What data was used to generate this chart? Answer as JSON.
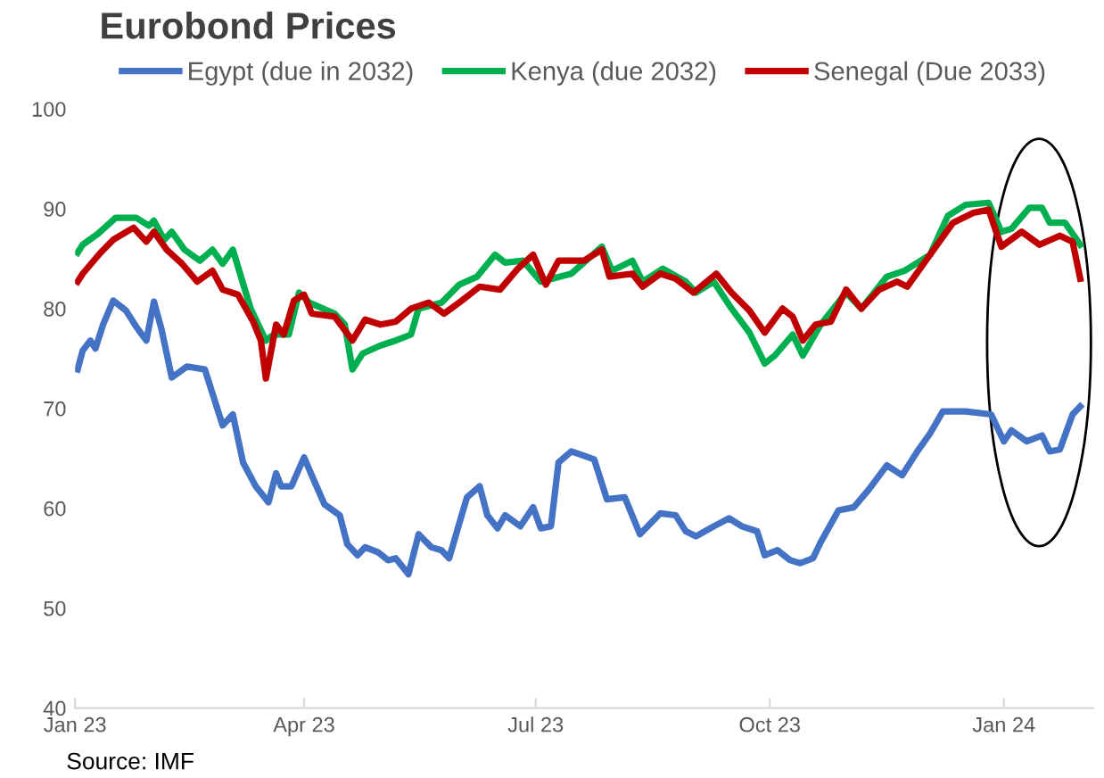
{
  "chart_data": {
    "type": "line",
    "title": "Eurobond Prices",
    "xlim": [
      "2023-01-01",
      "2024-02-05"
    ],
    "xticks": [
      {
        "value": "2023-01-01",
        "label": "Jan 23"
      },
      {
        "value": "2023-04-01",
        "label": "Apr 23"
      },
      {
        "value": "2023-07-01",
        "label": "Jul 23"
      },
      {
        "value": "2023-10-01",
        "label": "Oct 23"
      },
      {
        "value": "2024-01-01",
        "label": "Jan 24"
      }
    ],
    "ylim": [
      40,
      100
    ],
    "yticks": [
      40,
      50,
      60,
      70,
      80,
      90,
      100
    ],
    "grid": false,
    "legend": "top",
    "line_style": "solid",
    "marker": "none",
    "annotations": [
      "Source: IMF"
    ],
    "series": [
      {
        "name": "Egypt (due in 2032)",
        "color": "#4472c4",
        "x": [
          "2023-01-02",
          "2023-01-04",
          "2023-01-07",
          "2023-01-09",
          "2023-01-12",
          "2023-01-16",
          "2023-01-21",
          "2023-01-25",
          "2023-01-29",
          "2023-02-01",
          "2023-02-04",
          "2023-02-08",
          "2023-02-14",
          "2023-02-21",
          "2023-02-28",
          "2023-03-04",
          "2023-03-08",
          "2023-03-13",
          "2023-03-18",
          "2023-03-21",
          "2023-03-23",
          "2023-03-27",
          "2023-04-01",
          "2023-04-04",
          "2023-04-09",
          "2023-04-15",
          "2023-04-18",
          "2023-04-22",
          "2023-04-25",
          "2023-04-30",
          "2023-05-04",
          "2023-05-07",
          "2023-05-12",
          "2023-05-16",
          "2023-05-21",
          "2023-05-25",
          "2023-05-28",
          "2023-06-01",
          "2023-06-04",
          "2023-06-09",
          "2023-06-12",
          "2023-06-16",
          "2023-06-19",
          "2023-06-25",
          "2023-06-30",
          "2023-07-03",
          "2023-07-07",
          "2023-07-10",
          "2023-07-15",
          "2023-07-24",
          "2023-07-29",
          "2023-08-05",
          "2023-08-11",
          "2023-08-19",
          "2023-08-25",
          "2023-08-29",
          "2023-09-02",
          "2023-09-09",
          "2023-09-15",
          "2023-09-20",
          "2023-09-26",
          "2023-09-29",
          "2023-10-04",
          "2023-10-09",
          "2023-10-13",
          "2023-10-18",
          "2023-10-21",
          "2023-10-28",
          "2023-11-03",
          "2023-11-09",
          "2023-11-16",
          "2023-11-22",
          "2023-11-28",
          "2023-12-03",
          "2023-12-08",
          "2023-12-17",
          "2023-12-27",
          "2024-01-01",
          "2024-01-04",
          "2024-01-10",
          "2024-01-16",
          "2024-01-19",
          "2024-01-23",
          "2024-01-28",
          "2024-01-31"
        ],
        "values": [
          73.9,
          75.8,
          76.8,
          76.0,
          78.4,
          80.8,
          79.8,
          78.2,
          76.8,
          80.7,
          77.9,
          73.1,
          74.2,
          73.9,
          68.3,
          69.4,
          64.6,
          62.2,
          60.6,
          63.5,
          62.2,
          62.2,
          65.1,
          63.3,
          60.4,
          59.3,
          56.4,
          55.3,
          56.1,
          55.6,
          54.8,
          55.0,
          53.4,
          57.4,
          56.1,
          55.8,
          55.0,
          58.5,
          61.1,
          62.2,
          59.3,
          58.0,
          59.3,
          58.2,
          60.1,
          58.0,
          58.2,
          64.6,
          65.7,
          64.9,
          60.9,
          61.1,
          57.4,
          59.5,
          59.3,
          57.7,
          57.2,
          58.2,
          59.0,
          58.2,
          57.7,
          55.3,
          55.8,
          54.8,
          54.5,
          55.0,
          56.6,
          59.8,
          60.1,
          61.9,
          64.3,
          63.3,
          65.7,
          67.5,
          69.7,
          69.7,
          69.4,
          66.7,
          67.8,
          66.7,
          67.3,
          65.7,
          65.9,
          69.4,
          70.2
        ]
      },
      {
        "name": "Kenya (due 2032)",
        "color": "#00b050",
        "x": [
          "2023-01-02",
          "2023-01-04",
          "2023-01-10",
          "2023-01-17",
          "2023-01-25",
          "2023-01-30",
          "2023-02-01",
          "2023-02-05",
          "2023-02-08",
          "2023-02-13",
          "2023-02-19",
          "2023-02-24",
          "2023-02-28",
          "2023-03-04",
          "2023-03-11",
          "2023-03-17",
          "2023-03-20",
          "2023-03-26",
          "2023-03-30",
          "2023-04-03",
          "2023-04-13",
          "2023-04-17",
          "2023-04-20",
          "2023-04-24",
          "2023-05-01",
          "2023-05-07",
          "2023-05-13",
          "2023-05-16",
          "2023-05-25",
          "2023-06-01",
          "2023-06-08",
          "2023-06-15",
          "2023-06-19",
          "2023-06-26",
          "2023-07-03",
          "2023-07-15",
          "2023-07-27",
          "2023-07-31",
          "2023-08-08",
          "2023-08-12",
          "2023-08-20",
          "2023-08-29",
          "2023-09-02",
          "2023-09-09",
          "2023-09-16",
          "2023-09-23",
          "2023-09-29",
          "2023-10-03",
          "2023-10-10",
          "2023-10-14",
          "2023-10-21",
          "2023-10-31",
          "2023-11-06",
          "2023-11-16",
          "2023-11-23",
          "2023-12-03",
          "2023-12-10",
          "2023-12-17",
          "2023-12-26",
          "2023-12-31",
          "2024-01-04",
          "2024-01-11",
          "2024-01-16",
          "2024-01-19",
          "2024-01-25",
          "2024-01-31"
        ],
        "values": [
          85.6,
          86.4,
          87.5,
          89.1,
          89.1,
          88.3,
          88.8,
          86.9,
          87.7,
          85.9,
          84.8,
          85.9,
          84.5,
          85.9,
          80.0,
          76.8,
          77.4,
          77.4,
          81.6,
          80.6,
          79.5,
          78.4,
          73.9,
          75.5,
          76.3,
          76.8,
          77.4,
          80.0,
          80.6,
          82.4,
          83.2,
          85.4,
          84.6,
          84.8,
          82.7,
          83.5,
          86.2,
          83.8,
          84.8,
          82.7,
          84.0,
          82.7,
          81.6,
          82.7,
          80.0,
          77.6,
          74.5,
          75.3,
          77.4,
          75.3,
          78.4,
          81.6,
          80.0,
          83.2,
          83.8,
          85.4,
          89.3,
          90.4,
          90.6,
          87.7,
          88.0,
          90.1,
          90.1,
          88.6,
          88.6,
          86.4
        ]
      },
      {
        "name": "Senegal (Due 2033)",
        "color": "#c00000",
        "x": [
          "2023-01-02",
          "2023-01-04",
          "2023-01-11",
          "2023-01-16",
          "2023-01-24",
          "2023-01-29",
          "2023-02-01",
          "2023-02-06",
          "2023-02-12",
          "2023-02-18",
          "2023-02-24",
          "2023-02-28",
          "2023-03-06",
          "2023-03-12",
          "2023-03-15",
          "2023-03-17",
          "2023-03-21",
          "2023-03-24",
          "2023-03-28",
          "2023-04-01",
          "2023-04-04",
          "2023-04-13",
          "2023-04-20",
          "2023-04-25",
          "2023-05-01",
          "2023-05-07",
          "2023-05-13",
          "2023-05-20",
          "2023-05-26",
          "2023-06-02",
          "2023-06-09",
          "2023-06-17",
          "2023-06-24",
          "2023-06-30",
          "2023-07-05",
          "2023-07-10",
          "2023-07-20",
          "2023-07-27",
          "2023-07-30",
          "2023-08-08",
          "2023-08-12",
          "2023-08-19",
          "2023-08-25",
          "2023-09-01",
          "2023-09-10",
          "2023-09-16",
          "2023-09-23",
          "2023-09-29",
          "2023-10-06",
          "2023-10-10",
          "2023-10-14",
          "2023-10-19",
          "2023-10-25",
          "2023-10-31",
          "2023-11-06",
          "2023-11-13",
          "2023-11-20",
          "2023-11-24",
          "2023-12-03",
          "2023-12-12",
          "2023-12-20",
          "2023-12-26",
          "2023-12-31",
          "2024-01-08",
          "2024-01-15",
          "2024-01-23",
          "2024-01-28",
          "2024-01-31"
        ],
        "values": [
          82.7,
          83.5,
          85.6,
          86.9,
          88.1,
          86.7,
          87.7,
          85.9,
          84.5,
          82.7,
          83.8,
          81.9,
          81.4,
          78.7,
          76.8,
          73.0,
          78.4,
          77.4,
          80.8,
          81.4,
          79.5,
          79.2,
          76.8,
          78.9,
          78.4,
          78.7,
          80.0,
          80.6,
          79.5,
          80.8,
          82.2,
          81.9,
          84.0,
          85.4,
          82.4,
          84.8,
          84.8,
          85.9,
          83.2,
          83.5,
          82.2,
          83.5,
          83.0,
          81.6,
          83.5,
          81.6,
          79.8,
          77.6,
          80.0,
          79.2,
          76.8,
          78.4,
          78.7,
          81.9,
          80.0,
          81.9,
          82.7,
          82.2,
          85.4,
          88.6,
          89.6,
          89.9,
          86.2,
          87.7,
          86.4,
          87.3,
          86.7,
          83.0
        ]
      }
    ]
  }
}
